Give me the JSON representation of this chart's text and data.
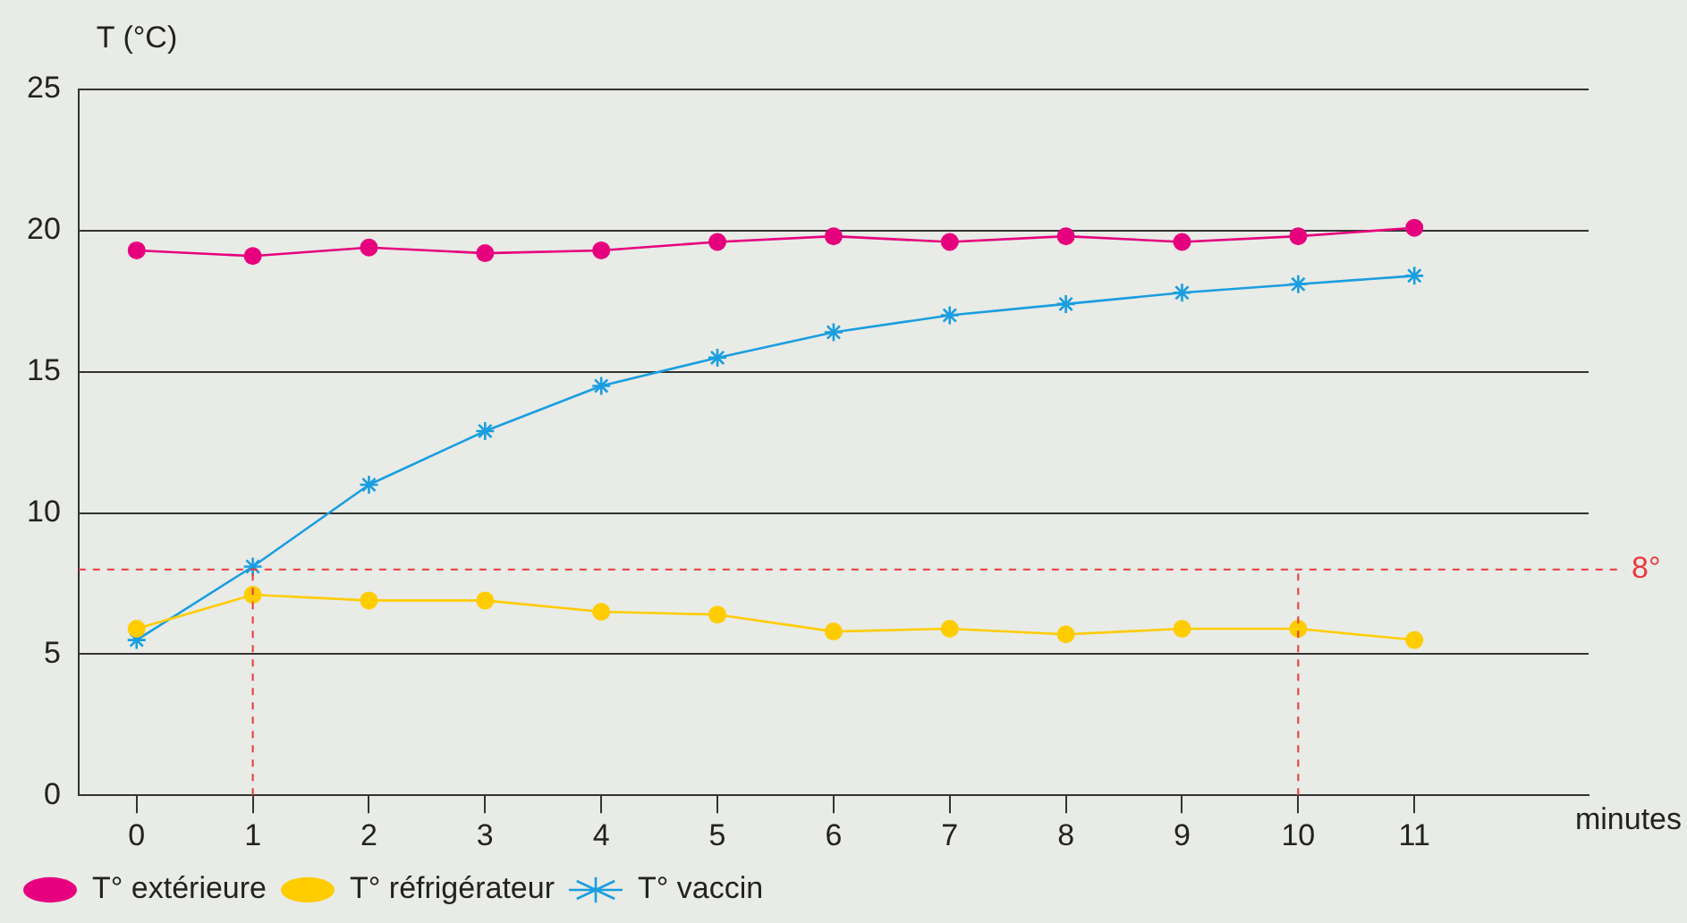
{
  "chart_data": {
    "type": "line",
    "ylabel": "T (°C)",
    "xlabel": "minutes",
    "x": [
      0,
      1,
      2,
      3,
      4,
      5,
      6,
      7,
      8,
      9,
      10,
      11
    ],
    "xlim": [
      -0.5,
      12.5
    ],
    "xticks": [
      0,
      1,
      2,
      3,
      4,
      5,
      6,
      7,
      8,
      9,
      10,
      11
    ],
    "ylim": [
      0,
      25
    ],
    "yticks": [
      0,
      5,
      10,
      15,
      20,
      25
    ],
    "grid": "y",
    "legend": "bottom left",
    "line_style": "solid",
    "series": [
      {
        "name": "T° extérieure",
        "color": "#e6007e",
        "marker": "circle",
        "values": [
          19.3,
          19.1,
          19.4,
          19.2,
          19.3,
          19.6,
          19.8,
          19.6,
          19.8,
          19.6,
          19.8,
          20.1
        ]
      },
      {
        "name": "T° réfrigérateur",
        "color": "#ffcc00",
        "marker": "circle",
        "values": [
          5.9,
          7.1,
          6.9,
          6.9,
          6.5,
          6.4,
          5.8,
          5.9,
          5.7,
          5.9,
          5.9,
          5.5
        ]
      },
      {
        "name": "T° vaccin",
        "color": "#1a9ee0",
        "marker": "cross",
        "values": [
          5.5,
          8.1,
          11.0,
          12.9,
          14.5,
          15.5,
          16.4,
          17.0,
          17.4,
          17.8,
          18.1,
          18.4
        ]
      }
    ],
    "ref_lines": [
      {
        "axis": "y",
        "value": 8,
        "label": "8°",
        "color": "#e8383d",
        "line_style": "dashed"
      },
      {
        "axis": "x",
        "value": 1,
        "label": null,
        "color": "#e8383d",
        "line_style": "dashed"
      },
      {
        "axis": "x",
        "value": 10,
        "label": null,
        "color": "#e8383d",
        "line_style": "dashed"
      }
    ]
  }
}
